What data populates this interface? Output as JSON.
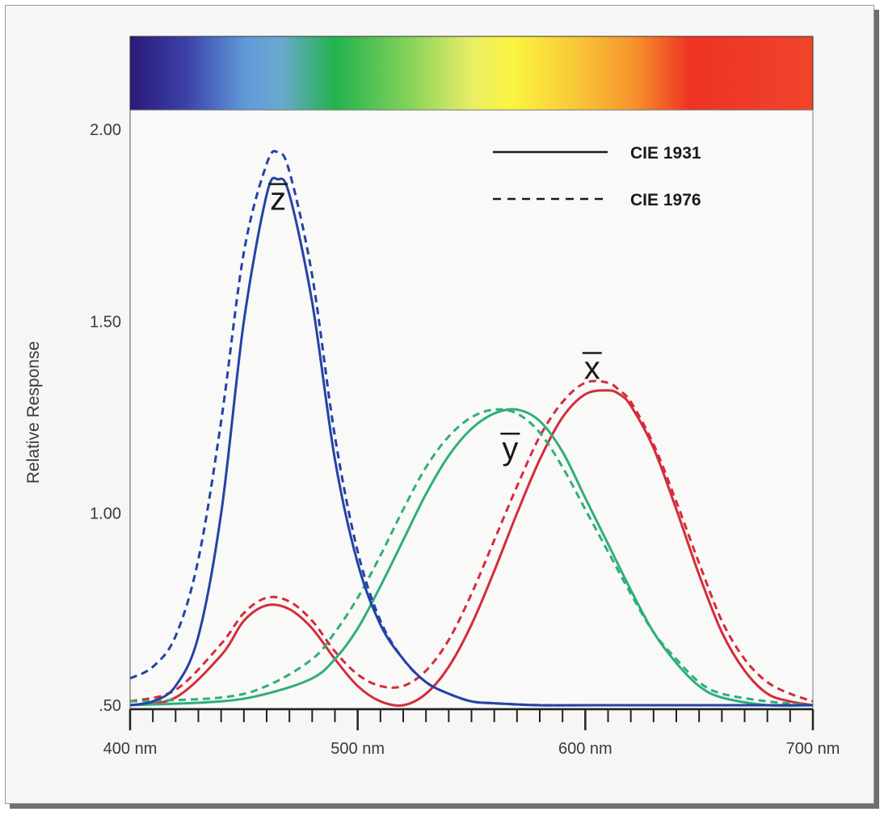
{
  "chart_data": {
    "type": "line",
    "title": "",
    "xlabel": "",
    "ylabel": "Relative Response",
    "xlim": [
      400,
      700
    ],
    "ylim": [
      0.5,
      2.0
    ],
    "x_ticks": [
      {
        "value": 400,
        "label": "400 nm"
      },
      {
        "value": 500,
        "label": "500 nm"
      },
      {
        "value": 600,
        "label": "600 nm"
      },
      {
        "value": 700,
        "label": "700 nm"
      }
    ],
    "y_ticks": [
      {
        "value": 0.5,
        "label": ".50"
      },
      {
        "value": 1.0,
        "label": "1.00"
      },
      {
        "value": 1.5,
        "label": "1.50"
      },
      {
        "value": 2.0,
        "label": "2.00"
      }
    ],
    "grid": false,
    "legend_position": "top-right",
    "legend": [
      {
        "label": "CIE 1931",
        "style": "solid"
      },
      {
        "label": "CIE 1976",
        "style": "dashed"
      }
    ],
    "curve_labels": [
      {
        "text": "z",
        "x": 465,
        "y": 1.79
      },
      {
        "text": "y",
        "x": 567,
        "y": 1.14
      },
      {
        "text": "x",
        "x": 603,
        "y": 1.35
      }
    ],
    "series": [
      {
        "curve": "x",
        "standard": "CIE 1931",
        "style": "solid",
        "color": "#d42c3c",
        "x": [
          400,
          420,
          440,
          450,
          460,
          470,
          480,
          490,
          500,
          510,
          520,
          530,
          540,
          550,
          560,
          570,
          580,
          590,
          600,
          610,
          615,
          620,
          630,
          640,
          650,
          660,
          670,
          680,
          690,
          700
        ],
        "y": [
          0.5,
          0.52,
          0.63,
          0.72,
          0.76,
          0.75,
          0.7,
          0.62,
          0.55,
          0.51,
          0.5,
          0.53,
          0.6,
          0.71,
          0.85,
          1.0,
          1.14,
          1.25,
          1.31,
          1.32,
          1.31,
          1.28,
          1.17,
          1.01,
          0.84,
          0.69,
          0.59,
          0.53,
          0.51,
          0.5
        ]
      },
      {
        "curve": "x",
        "standard": "CIE 1976",
        "style": "dashed",
        "color": "#d42c3c",
        "x": [
          400,
          420,
          440,
          450,
          460,
          470,
          480,
          490,
          500,
          510,
          520,
          530,
          540,
          550,
          560,
          570,
          580,
          590,
          600,
          610,
          615,
          620,
          630,
          640,
          650,
          660,
          670,
          680,
          690,
          700
        ],
        "y": [
          0.51,
          0.54,
          0.66,
          0.74,
          0.78,
          0.77,
          0.72,
          0.64,
          0.58,
          0.55,
          0.55,
          0.59,
          0.67,
          0.79,
          0.93,
          1.07,
          1.2,
          1.29,
          1.34,
          1.34,
          1.32,
          1.29,
          1.18,
          1.03,
          0.87,
          0.72,
          0.62,
          0.56,
          0.53,
          0.51
        ]
      },
      {
        "curve": "y",
        "standard": "CIE 1931",
        "style": "solid",
        "color": "#2fae7d",
        "x": [
          400,
          440,
          460,
          480,
          490,
          500,
          510,
          520,
          530,
          540,
          550,
          560,
          570,
          580,
          590,
          600,
          610,
          620,
          630,
          640,
          650,
          660,
          680,
          700
        ],
        "y": [
          0.5,
          0.51,
          0.53,
          0.57,
          0.62,
          0.7,
          0.81,
          0.93,
          1.05,
          1.15,
          1.22,
          1.26,
          1.27,
          1.24,
          1.16,
          1.04,
          0.92,
          0.8,
          0.69,
          0.61,
          0.55,
          0.52,
          0.5,
          0.5
        ]
      },
      {
        "curve": "y",
        "standard": "CIE 1976",
        "style": "dashed",
        "color": "#2fae7d",
        "x": [
          400,
          440,
          460,
          480,
          490,
          500,
          510,
          520,
          530,
          540,
          550,
          560,
          570,
          580,
          590,
          600,
          610,
          620,
          630,
          640,
          650,
          660,
          680,
          700
        ],
        "y": [
          0.51,
          0.52,
          0.55,
          0.62,
          0.69,
          0.78,
          0.89,
          1.01,
          1.12,
          1.2,
          1.25,
          1.27,
          1.26,
          1.21,
          1.12,
          1.01,
          0.9,
          0.79,
          0.69,
          0.62,
          0.56,
          0.53,
          0.51,
          0.5
        ]
      },
      {
        "curve": "z",
        "standard": "CIE 1931",
        "style": "solid",
        "color": "#2442a8",
        "x": [
          400,
          410,
          420,
          430,
          440,
          450,
          460,
          465,
          470,
          480,
          490,
          500,
          510,
          520,
          530,
          540,
          550,
          560,
          580,
          600,
          620,
          700
        ],
        "y": [
          0.5,
          0.51,
          0.55,
          0.68,
          1.0,
          1.5,
          1.83,
          1.87,
          1.83,
          1.55,
          1.14,
          0.87,
          0.71,
          0.62,
          0.56,
          0.53,
          0.51,
          0.505,
          0.5,
          0.5,
          0.5,
          0.5
        ]
      },
      {
        "curve": "z",
        "standard": "CIE 1976",
        "style": "dashed",
        "color": "#2442a8",
        "x": [
          400,
          410,
          420,
          430,
          440,
          450,
          460,
          465,
          470,
          480,
          490,
          500,
          510,
          520,
          530,
          540,
          550,
          560,
          580,
          600,
          620,
          700
        ],
        "y": [
          0.57,
          0.6,
          0.68,
          0.88,
          1.24,
          1.68,
          1.91,
          1.94,
          1.89,
          1.62,
          1.2,
          0.9,
          0.72,
          0.62,
          0.56,
          0.53,
          0.51,
          0.505,
          0.5,
          0.5,
          0.5,
          0.5
        ]
      }
    ]
  }
}
